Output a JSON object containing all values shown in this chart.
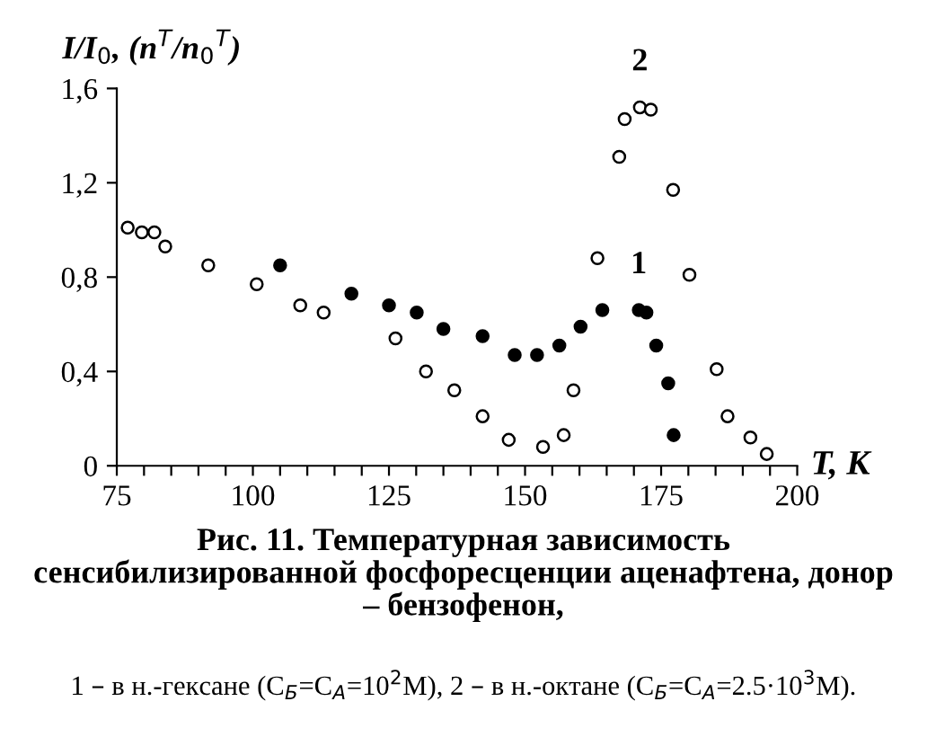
{
  "chart_data": {
    "type": "scatter",
    "title": "Рис. 11. Температурная зависимость\nсенсибилизированной фосфоресценции аценафтена, донор\n– бензофенон,",
    "annotations": [
      "1 – в н.-гексане (C$_{Б}$=C$_{А}$=10$^{2}$M), 2 – в н.-октане (C$_{Б}$=C$_{А}$=2.5·10$^{3}$M)."
    ],
    "xlabel": "T, К",
    "ylabel": "I/I$_{0}$, (n$^{T}$/n$_{0}$$^{T}$)",
    "series": [
      {
        "name": "1",
        "color": "#000000",
        "x": [
          105.0,
          118.1,
          125.0,
          130.1,
          135.0,
          142.2,
          148.1,
          152.2,
          156.3,
          160.2,
          164.2,
          170.9,
          172.3,
          174.1,
          176.3,
          177.3
        ],
        "values": [
          0.85,
          0.73,
          0.68,
          0.65,
          0.58,
          0.55,
          0.47,
          0.47,
          0.51,
          0.59,
          0.66,
          0.66,
          0.65,
          0.51,
          0.35,
          0.13
        ]
      },
      {
        "name": "2",
        "color": "#ffffff",
        "x": [
          77.0,
          79.6,
          81.9,
          83.9,
          91.8,
          100.7,
          108.7,
          113.0,
          126.2,
          131.8,
          137.0,
          142.2,
          147.0,
          153.3,
          157.1,
          158.9,
          163.3,
          167.3,
          168.3,
          171.1,
          173.1,
          177.2,
          180.2,
          185.2,
          187.2,
          191.4,
          194.4
        ],
        "values": [
          1.01,
          0.99,
          0.99,
          0.93,
          0.85,
          0.77,
          0.68,
          0.65,
          0.54,
          0.4,
          0.32,
          0.21,
          0.11,
          0.08,
          0.13,
          0.32,
          0.88,
          1.31,
          1.47,
          1.52,
          1.51,
          1.17,
          0.81,
          0.41,
          0.21,
          0.12,
          0.05
        ]
      }
    ],
    "marker": "circle",
    "grid": false,
    "legend": false,
    "xlim": [
      75,
      200
    ],
    "ylim": [
      0,
      1.6
    ],
    "xticks": [
      75,
      {
        "value": 80,
        "label": null
      },
      {
        "value": 85,
        "label": null
      },
      {
        "value": 90,
        "label": null
      },
      {
        "value": 95,
        "label": null
      },
      100,
      {
        "value": 105,
        "label": null
      },
      {
        "value": 110,
        "label": null
      },
      {
        "value": 115,
        "label": null
      },
      {
        "value": 120,
        "label": null
      },
      125,
      {
        "value": 130,
        "label": null
      },
      {
        "value": 135,
        "label": null
      },
      {
        "value": 140,
        "label": null
      },
      {
        "value": 145,
        "label": null
      },
      150,
      {
        "value": 155,
        "label": null
      },
      {
        "value": 160,
        "label": null
      },
      {
        "value": 165,
        "label": null
      },
      {
        "value": 170,
        "label": null
      },
      175,
      {
        "value": 180,
        "label": null
      },
      {
        "value": 185,
        "label": null
      },
      {
        "value": 190,
        "label": null
      },
      {
        "value": 195,
        "label": null
      },
      200
    ],
    "yticks": [
      0,
      {
        "value": 0.4,
        "label": "0,4"
      },
      {
        "value": 0.8,
        "label": "0,8"
      },
      {
        "value": 1.2,
        "label": "1,2"
      },
      {
        "value": 1.6,
        "label": "1,6"
      }
    ]
  }
}
